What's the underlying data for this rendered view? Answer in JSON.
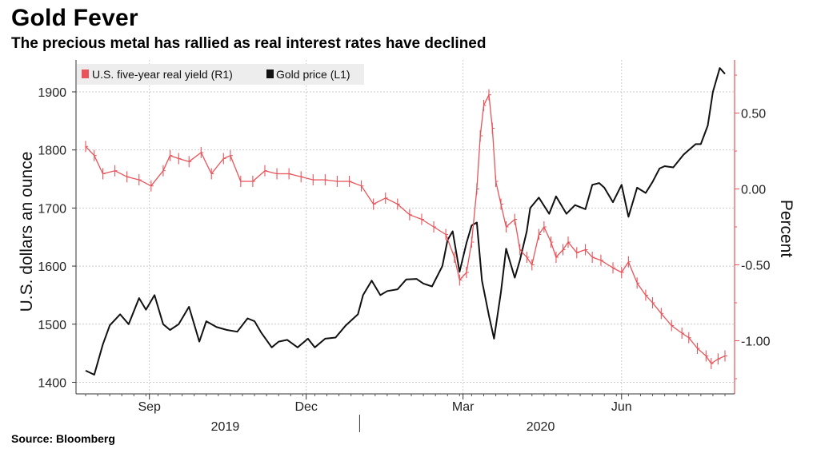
{
  "title": "Gold Fever",
  "subtitle": "The precious metal has rallied as real interest rates have declined",
  "source": "Source: Bloomberg",
  "colors": {
    "gold": "#111111",
    "yield": "#e8545a",
    "grid": "#cccccc",
    "legend_bg": "#ededed"
  },
  "chart_data": {
    "type": "line",
    "left_axis": {
      "label": "U.S. dollars an ounce",
      "ticks": [
        1400,
        1500,
        1600,
        1700,
        1800,
        1900
      ],
      "range": [
        1380,
        1955
      ]
    },
    "right_axis": {
      "label": "Percent",
      "ticks": [
        -1.0,
        -0.5,
        0.0,
        0.5
      ],
      "tick_labels": [
        "-1.00",
        "-0.50",
        "0.00",
        "0.50"
      ],
      "range": [
        -1.35,
        0.85
      ]
    },
    "x_axis": {
      "range": [
        "2019-07-26",
        "2020-07-31"
      ],
      "month_ticks": [
        {
          "date": "2019-09-01",
          "label": "Sep"
        },
        {
          "date": "2019-12-01",
          "label": "Dec"
        },
        {
          "date": "2020-03-01",
          "label": "Mar"
        },
        {
          "date": "2020-06-01",
          "label": "Jun"
        }
      ],
      "year_labels": [
        {
          "date": "2019-10-15",
          "label": "2019"
        },
        {
          "date": "2020-04-15",
          "label": "2020"
        }
      ],
      "year_divider": "2020-01-01"
    },
    "legend": {
      "placement": "top-left",
      "entries": [
        "U.S. five-year real yield (R1)",
        "Gold price (L1)"
      ]
    },
    "grid": true,
    "series": [
      {
        "name": "Gold price (L1)",
        "axis": "left",
        "color": "#111111",
        "style": "line",
        "points": [
          [
            "2019-07-26",
            1420
          ],
          [
            "2019-07-31",
            1413
          ],
          [
            "2019-08-05",
            1465
          ],
          [
            "2019-08-09",
            1498
          ],
          [
            "2019-08-15",
            1517
          ],
          [
            "2019-08-20",
            1500
          ],
          [
            "2019-08-26",
            1545
          ],
          [
            "2019-08-30",
            1525
          ],
          [
            "2019-09-04",
            1550
          ],
          [
            "2019-09-09",
            1500
          ],
          [
            "2019-09-13",
            1490
          ],
          [
            "2019-09-18",
            1500
          ],
          [
            "2019-09-24",
            1530
          ],
          [
            "2019-09-30",
            1470
          ],
          [
            "2019-10-04",
            1505
          ],
          [
            "2019-10-10",
            1495
          ],
          [
            "2019-10-16",
            1490
          ],
          [
            "2019-10-22",
            1487
          ],
          [
            "2019-10-28",
            1510
          ],
          [
            "2019-11-01",
            1505
          ],
          [
            "2019-11-05",
            1485
          ],
          [
            "2019-11-11",
            1460
          ],
          [
            "2019-11-15",
            1470
          ],
          [
            "2019-11-20",
            1473
          ],
          [
            "2019-11-26",
            1460
          ],
          [
            "2019-12-02",
            1475
          ],
          [
            "2019-12-06",
            1460
          ],
          [
            "2019-12-12",
            1475
          ],
          [
            "2019-12-18",
            1477
          ],
          [
            "2019-12-24",
            1498
          ],
          [
            "2019-12-31",
            1517
          ],
          [
            "2020-01-03",
            1550
          ],
          [
            "2020-01-08",
            1575
          ],
          [
            "2020-01-13",
            1550
          ],
          [
            "2020-01-17",
            1557
          ],
          [
            "2020-01-23",
            1560
          ],
          [
            "2020-01-28",
            1577
          ],
          [
            "2020-02-03",
            1578
          ],
          [
            "2020-02-07",
            1570
          ],
          [
            "2020-02-12",
            1565
          ],
          [
            "2020-02-18",
            1600
          ],
          [
            "2020-02-21",
            1645
          ],
          [
            "2020-02-24",
            1660
          ],
          [
            "2020-02-28",
            1590
          ],
          [
            "2020-03-03",
            1640
          ],
          [
            "2020-03-06",
            1670
          ],
          [
            "2020-03-09",
            1675
          ],
          [
            "2020-03-12",
            1575
          ],
          [
            "2020-03-16",
            1515
          ],
          [
            "2020-03-19",
            1475
          ],
          [
            "2020-03-23",
            1555
          ],
          [
            "2020-03-26",
            1630
          ],
          [
            "2020-03-31",
            1580
          ],
          [
            "2020-04-03",
            1610
          ],
          [
            "2020-04-07",
            1660
          ],
          [
            "2020-04-09",
            1700
          ],
          [
            "2020-04-14",
            1718
          ],
          [
            "2020-04-20",
            1690
          ],
          [
            "2020-04-24",
            1720
          ],
          [
            "2020-04-30",
            1690
          ],
          [
            "2020-05-05",
            1705
          ],
          [
            "2020-05-11",
            1698
          ],
          [
            "2020-05-15",
            1740
          ],
          [
            "2020-05-19",
            1743
          ],
          [
            "2020-05-22",
            1735
          ],
          [
            "2020-05-27",
            1710
          ],
          [
            "2020-06-01",
            1740
          ],
          [
            "2020-06-05",
            1685
          ],
          [
            "2020-06-10",
            1735
          ],
          [
            "2020-06-15",
            1726
          ],
          [
            "2020-06-19",
            1745
          ],
          [
            "2020-06-23",
            1768
          ],
          [
            "2020-06-26",
            1772
          ],
          [
            "2020-07-01",
            1770
          ],
          [
            "2020-07-07",
            1792
          ],
          [
            "2020-07-10",
            1800
          ],
          [
            "2020-07-14",
            1810
          ],
          [
            "2020-07-17",
            1810
          ],
          [
            "2020-07-21",
            1842
          ],
          [
            "2020-07-24",
            1900
          ],
          [
            "2020-07-28",
            1941
          ],
          [
            "2020-07-31",
            1931
          ]
        ]
      },
      {
        "name": "U.S. five-year real yield (R1)",
        "axis": "right",
        "color": "#e8545a",
        "style": "ohlc",
        "points": [
          [
            "2019-07-26",
            0.28
          ],
          [
            "2019-07-31",
            0.22
          ],
          [
            "2019-08-05",
            0.1
          ],
          [
            "2019-08-12",
            0.12
          ],
          [
            "2019-08-19",
            0.08
          ],
          [
            "2019-08-26",
            0.06
          ],
          [
            "2019-09-02",
            0.02
          ],
          [
            "2019-09-09",
            0.12
          ],
          [
            "2019-09-13",
            0.22
          ],
          [
            "2019-09-18",
            0.2
          ],
          [
            "2019-09-24",
            0.18
          ],
          [
            "2019-10-01",
            0.24
          ],
          [
            "2019-10-07",
            0.1
          ],
          [
            "2019-10-14",
            0.2
          ],
          [
            "2019-10-18",
            0.22
          ],
          [
            "2019-10-24",
            0.05
          ],
          [
            "2019-10-31",
            0.05
          ],
          [
            "2019-11-07",
            0.12
          ],
          [
            "2019-11-14",
            0.1
          ],
          [
            "2019-11-21",
            0.1
          ],
          [
            "2019-11-28",
            0.08
          ],
          [
            "2019-12-05",
            0.06
          ],
          [
            "2019-12-12",
            0.06
          ],
          [
            "2019-12-19",
            0.05
          ],
          [
            "2019-12-26",
            0.05
          ],
          [
            "2020-01-02",
            0.02
          ],
          [
            "2020-01-09",
            -0.1
          ],
          [
            "2020-01-16",
            -0.06
          ],
          [
            "2020-01-23",
            -0.1
          ],
          [
            "2020-01-30",
            -0.17
          ],
          [
            "2020-02-06",
            -0.2
          ],
          [
            "2020-02-13",
            -0.25
          ],
          [
            "2020-02-20",
            -0.3
          ],
          [
            "2020-02-25",
            -0.45
          ],
          [
            "2020-02-28",
            -0.6
          ],
          [
            "2020-03-03",
            -0.55
          ],
          [
            "2020-03-06",
            -0.35
          ],
          [
            "2020-03-09",
            0.0
          ],
          [
            "2020-03-11",
            0.35
          ],
          [
            "2020-03-13",
            0.55
          ],
          [
            "2020-03-16",
            0.62
          ],
          [
            "2020-03-18",
            0.4
          ],
          [
            "2020-03-20",
            0.05
          ],
          [
            "2020-03-23",
            -0.1
          ],
          [
            "2020-03-26",
            -0.25
          ],
          [
            "2020-03-31",
            -0.2
          ],
          [
            "2020-04-03",
            -0.4
          ],
          [
            "2020-04-07",
            -0.45
          ],
          [
            "2020-04-10",
            -0.5
          ],
          [
            "2020-04-14",
            -0.3
          ],
          [
            "2020-04-17",
            -0.25
          ],
          [
            "2020-04-21",
            -0.35
          ],
          [
            "2020-04-24",
            -0.45
          ],
          [
            "2020-04-28",
            -0.4
          ],
          [
            "2020-05-01",
            -0.35
          ],
          [
            "2020-05-06",
            -0.42
          ],
          [
            "2020-05-11",
            -0.4
          ],
          [
            "2020-05-15",
            -0.45
          ],
          [
            "2020-05-20",
            -0.47
          ],
          [
            "2020-05-27",
            -0.52
          ],
          [
            "2020-06-01",
            -0.55
          ],
          [
            "2020-06-05",
            -0.48
          ],
          [
            "2020-06-10",
            -0.62
          ],
          [
            "2020-06-15",
            -0.7
          ],
          [
            "2020-06-19",
            -0.75
          ],
          [
            "2020-06-24",
            -0.82
          ],
          [
            "2020-06-30",
            -0.9
          ],
          [
            "2020-07-06",
            -0.95
          ],
          [
            "2020-07-10",
            -0.98
          ],
          [
            "2020-07-15",
            -1.05
          ],
          [
            "2020-07-20",
            -1.1
          ],
          [
            "2020-07-23",
            -1.15
          ],
          [
            "2020-07-27",
            -1.12
          ],
          [
            "2020-07-31",
            -1.1
          ]
        ]
      }
    ]
  }
}
